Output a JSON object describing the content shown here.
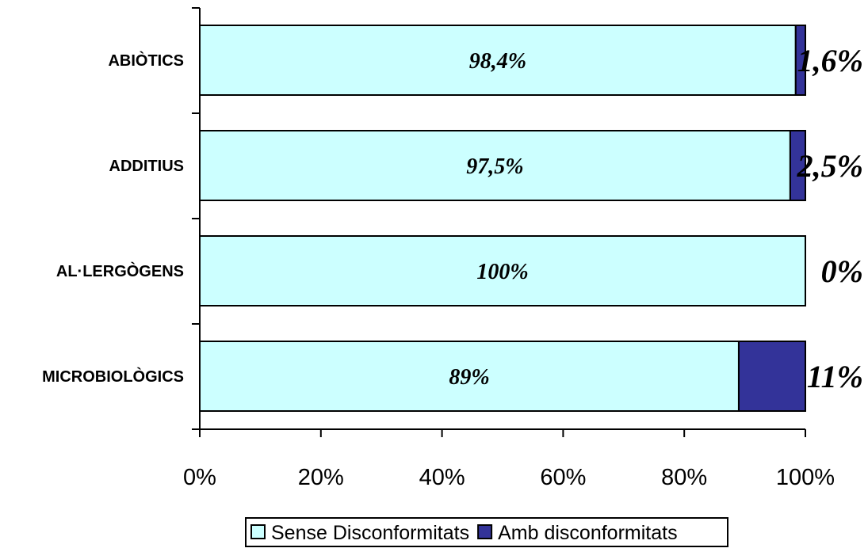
{
  "chart_data": {
    "type": "bar",
    "orientation": "horizontal",
    "stacked": true,
    "percent_stacked": true,
    "categories": [
      "ABIÒTICS",
      "ADDITIUS",
      "AL·LERGÒGENS",
      "MICROBIOLÒGICS"
    ],
    "series": [
      {
        "name": "Sense Disconformitats",
        "values": [
          98.4,
          97.5,
          100,
          89
        ],
        "labels": [
          "98,4%",
          "97,5%",
          "100%",
          "89%"
        ],
        "color": "#ccffff"
      },
      {
        "name": "Amb disconformitats",
        "values": [
          1.6,
          2.5,
          0,
          11
        ],
        "labels": [
          "1,6%",
          "2,5%",
          "0%",
          "11%"
        ],
        "color": "#333399"
      }
    ],
    "xlim": [
      0,
      100
    ],
    "xticks": [
      "0%",
      "20%",
      "40%",
      "60%",
      "80%",
      "100%"
    ],
    "grid": false,
    "legend": "bottom",
    "title": "",
    "xlabel": "",
    "ylabel": ""
  }
}
